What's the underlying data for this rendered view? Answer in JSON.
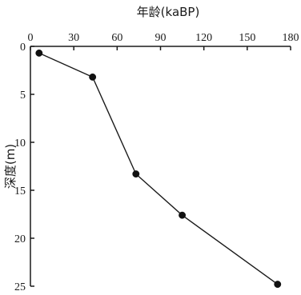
{
  "chart_data": {
    "type": "line",
    "xlabel": "年龄(kaBP)",
    "ylabel": "深度(m)",
    "x_ticks": [
      0,
      30,
      60,
      90,
      120,
      150,
      180
    ],
    "y_ticks": [
      0,
      5,
      10,
      15,
      20,
      25
    ],
    "xlim": [
      0,
      180
    ],
    "ylim": [
      0,
      25
    ],
    "y_inverted": true,
    "x_axis_position": "top",
    "grid": false,
    "series": [
      {
        "points": [
          {
            "x": 6,
            "y": 0.7
          },
          {
            "x": 43,
            "y": 3.2
          },
          {
            "x": 73,
            "y": 13.3
          },
          {
            "x": 105,
            "y": 17.6
          },
          {
            "x": 171,
            "y": 24.8
          }
        ]
      }
    ],
    "colors": {
      "ink": "#1a1a1a"
    }
  }
}
